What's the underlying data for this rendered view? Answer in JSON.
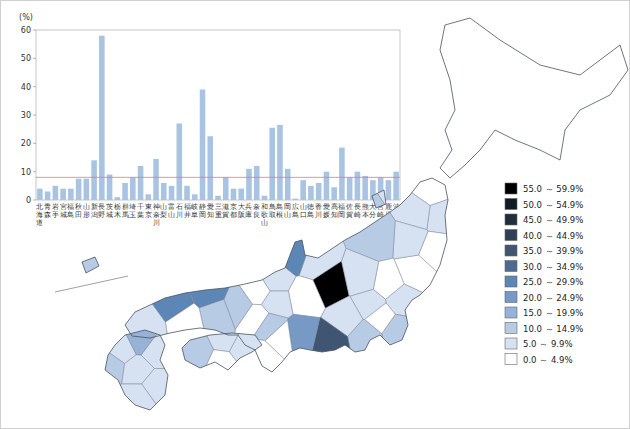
{
  "chart_data": {
    "type": "bar",
    "y_label": "(%)",
    "categories": [
      "北海道",
      "青森",
      "岩手",
      "宮城",
      "福島",
      "秋田",
      "山形",
      "新潟",
      "長野",
      "茨城",
      "栃木",
      "群馬",
      "埼玉",
      "千葉",
      "東京",
      "神奈川",
      "山梨",
      "富山",
      "石川",
      "福井",
      "岐阜",
      "静岡",
      "愛知",
      "三重",
      "滋賀",
      "京都",
      "大阪",
      "兵庫",
      "奈良",
      "和歌山",
      "鳥取",
      "島根",
      "岡山",
      "広島",
      "山口",
      "徳島",
      "香川",
      "愛媛",
      "高知",
      "福岡",
      "佐賀",
      "長崎",
      "熊本",
      "大分",
      "宮崎",
      "鹿児島",
      "沖縄"
    ],
    "values": [
      4,
      3,
      5,
      4,
      4,
      7.5,
      7.5,
      14,
      58,
      9,
      1,
      6,
      8,
      12,
      2,
      14.5,
      6,
      5,
      27,
      5,
      2,
      39,
      22.5,
      1.5,
      8,
      4,
      4,
      11,
      12,
      1.5,
      25.5,
      26.5,
      11,
      0.5,
      7,
      5,
      6,
      10,
      4.5,
      18.5,
      8,
      10,
      8.5,
      7,
      8,
      7,
      10
    ],
    "color": "#a9c4e2",
    "reference_line": 8,
    "ylim": [
      0,
      60
    ],
    "yticks": [
      0,
      10,
      20,
      30,
      40,
      50,
      60
    ],
    "grid": false
  },
  "map": {
    "legend": [
      {
        "label": "55.0 ～ 59.9%",
        "min": 55,
        "color": "#000000"
      },
      {
        "label": "50.0 ～ 54.9%",
        "min": 50,
        "color": "#121a24"
      },
      {
        "label": "45.0 ～ 49.9%",
        "min": 45,
        "color": "#202d3d"
      },
      {
        "label": "40.0 ～ 44.9%",
        "min": 40,
        "color": "#2f4056"
      },
      {
        "label": "35.0 ～ 39.9%",
        "min": 35,
        "color": "#3f5571"
      },
      {
        "label": "30.0 ～ 34.9%",
        "min": 30,
        "color": "#4d6b90"
      },
      {
        "label": "25.0 ～ 29.9%",
        "min": 25,
        "color": "#5c86b6"
      },
      {
        "label": "20.0 ～ 24.9%",
        "min": 20,
        "color": "#7699c6"
      },
      {
        "label": "15.0 ～ 19.9%",
        "min": 15,
        "color": "#97b2d7"
      },
      {
        "label": "10.0 ～ 14.9%",
        "min": 10,
        "color": "#b7cbe5"
      },
      {
        "label": "5.0 ～ 9.9%",
        "min": 5,
        "color": "#d6e2f2"
      },
      {
        "label": "0.0 ～ 4.9%",
        "min": 0,
        "color": "#ffffff"
      }
    ]
  }
}
